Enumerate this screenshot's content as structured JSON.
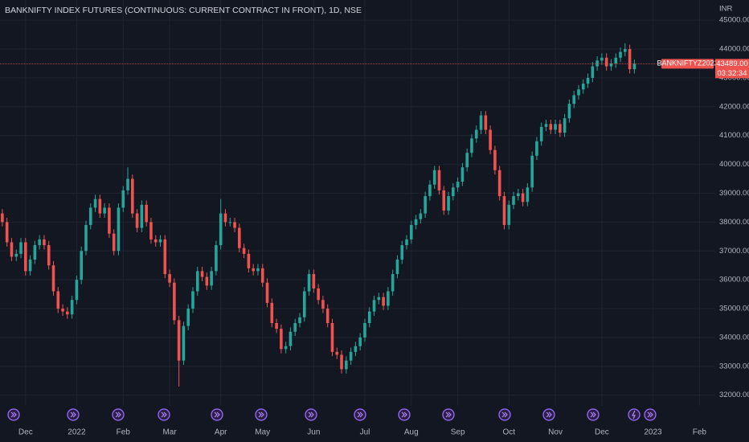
{
  "chart_data": {
    "type": "candlestick",
    "title": "BANKNIFTY INDEX FUTURES (CONTINUOUS: CURRENT CONTRACT IN FRONT), 1D, NSE",
    "currency": "INR",
    "up_color": "#26a69a",
    "down_color": "#ef5350",
    "open": [
      38300,
      38000,
      37300,
      36800,
      36900,
      37300,
      36300,
      36700,
      37200,
      37400,
      37200,
      36500,
      35600,
      35000,
      34900,
      34800,
      35300,
      36000,
      37000,
      37900,
      38500,
      38800,
      38300,
      38500,
      37600,
      37000,
      38500,
      39100,
      39500,
      38300,
      37800,
      38600,
      38000,
      37400,
      37300,
      37400,
      36200,
      35900,
      34600,
      33200,
      34400,
      35000,
      35600,
      36300,
      36100,
      35800,
      36300,
      37200,
      38300,
      38000,
      38000,
      37800,
      37100,
      36900,
      36400,
      36300,
      36400,
      35900,
      35200,
      34500,
      34300,
      33600,
      33700,
      34200,
      34500,
      34700,
      35600,
      36200,
      35700,
      35300,
      35000,
      34500,
      33500,
      33400,
      32900,
      33200,
      33500,
      33700,
      34000,
      34500,
      34900,
      35300,
      35400,
      35100,
      35600,
      36200,
      36700,
      37200,
      37400,
      37900,
      38100,
      38300,
      38900,
      39300,
      39800,
      39100,
      38400,
      38900,
      39200,
      39400,
      39900,
      40400,
      40900,
      41200,
      41700,
      41200,
      40500,
      39800,
      38900,
      37900,
      38600,
      38900,
      39000,
      38700,
      39200,
      40300,
      40800,
      41300,
      41400,
      41200,
      41400,
      41100,
      41600,
      42100,
      42400,
      42600,
      42800,
      43000,
      43400,
      43600,
      43700,
      43400,
      43500,
      43700,
      43900,
      44000,
      43300
    ],
    "high": [
      38450,
      38150,
      37450,
      37050,
      37450,
      37450,
      36850,
      37350,
      37550,
      37550,
      37350,
      36650,
      35750,
      35150,
      35050,
      35450,
      36150,
      37150,
      38050,
      38650,
      38950,
      38950,
      38650,
      38650,
      37750,
      38650,
      39250,
      39900,
      39650,
      38450,
      38750,
      38750,
      38150,
      37550,
      37550,
      37550,
      36350,
      36050,
      34750,
      34550,
      35150,
      35750,
      36450,
      36450,
      36250,
      36450,
      37350,
      38800,
      38450,
      38150,
      38150,
      37950,
      37250,
      37050,
      36550,
      36550,
      36550,
      36050,
      35350,
      34650,
      34450,
      33850,
      34350,
      34650,
      34850,
      35750,
      36350,
      36350,
      35850,
      35450,
      35150,
      34650,
      33650,
      33550,
      33350,
      33650,
      33850,
      34150,
      34650,
      35050,
      35450,
      35550,
      35550,
      35750,
      36350,
      36850,
      37350,
      37550,
      38050,
      38250,
      38450,
      39050,
      39450,
      39950,
      39950,
      39250,
      39050,
      39350,
      39550,
      40050,
      40550,
      41050,
      41350,
      41850,
      41850,
      41350,
      40650,
      39950,
      39050,
      38750,
      39050,
      39150,
      39150,
      39350,
      40450,
      40950,
      41450,
      41550,
      41550,
      41550,
      41550,
      41750,
      42250,
      42550,
      42750,
      42950,
      43150,
      43550,
      43750,
      43850,
      43850,
      43650,
      43850,
      44050,
      44200,
      44150,
      43639
    ],
    "low": [
      37850,
      37150,
      36650,
      36650,
      36750,
      36150,
      36150,
      36550,
      37050,
      37050,
      36350,
      35450,
      34850,
      34750,
      34650,
      34650,
      35150,
      35850,
      36850,
      37750,
      38350,
      38150,
      38150,
      37450,
      36850,
      36850,
      38350,
      38950,
      38150,
      37650,
      37650,
      37850,
      37250,
      37150,
      37150,
      36050,
      35750,
      34450,
      32300,
      33050,
      34250,
      34850,
      35450,
      35950,
      35650,
      35650,
      36150,
      37050,
      37850,
      37850,
      37650,
      36950,
      36750,
      36250,
      36150,
      36150,
      35750,
      35050,
      34350,
      34150,
      33450,
      33450,
      33550,
      34050,
      34350,
      34550,
      35450,
      35550,
      35150,
      34850,
      34350,
      33350,
      33250,
      32750,
      32750,
      33050,
      33350,
      33550,
      33850,
      34350,
      34750,
      35150,
      34950,
      34950,
      35450,
      36050,
      36550,
      37050,
      37250,
      37750,
      37950,
      38150,
      38750,
      39150,
      38950,
      38250,
      38250,
      38750,
      39050,
      39250,
      39750,
      40250,
      40750,
      41050,
      41050,
      40350,
      39650,
      38750,
      37750,
      37750,
      38450,
      38750,
      38550,
      38550,
      39050,
      40150,
      40650,
      41150,
      41050,
      41050,
      40950,
      40950,
      41450,
      41950,
      42250,
      42450,
      42650,
      42850,
      43250,
      43450,
      43250,
      43250,
      43350,
      43550,
      43750,
      43150,
      43150
    ],
    "close": [
      38000,
      37300,
      36800,
      36900,
      37300,
      36300,
      36700,
      37200,
      37400,
      37200,
      36500,
      35600,
      35000,
      34900,
      34800,
      35300,
      36000,
      37000,
      37900,
      38500,
      38800,
      38300,
      38500,
      37600,
      37000,
      38500,
      39100,
      39500,
      38300,
      37800,
      38600,
      38000,
      37400,
      37300,
      37400,
      36200,
      35900,
      34600,
      33200,
      34400,
      35000,
      35600,
      36300,
      36100,
      35800,
      36300,
      37200,
      38300,
      38000,
      38000,
      37800,
      37100,
      36900,
      36400,
      36300,
      36400,
      35900,
      35200,
      34500,
      34300,
      33600,
      33700,
      34200,
      34500,
      34700,
      35600,
      36200,
      35700,
      35300,
      35000,
      34500,
      33500,
      33400,
      32900,
      33200,
      33500,
      33700,
      34000,
      34500,
      34900,
      35300,
      35400,
      35100,
      35600,
      36200,
      36700,
      37200,
      37400,
      37900,
      38100,
      38300,
      38900,
      39300,
      39800,
      39100,
      38400,
      38900,
      39200,
      39400,
      39900,
      40400,
      40900,
      41200,
      41700,
      41200,
      40500,
      39800,
      38900,
      37900,
      38600,
      38900,
      39000,
      38700,
      39200,
      40300,
      40800,
      41300,
      41400,
      41200,
      41400,
      41100,
      41600,
      42100,
      42400,
      42600,
      42800,
      43000,
      43400,
      43600,
      43700,
      43400,
      43500,
      43700,
      43900,
      44000,
      43300,
      43489
    ],
    "xlim": [
      -0.5,
      153.4
    ],
    "xticks": [
      {
        "value": 5,
        "label": "Dec"
      },
      {
        "value": 16,
        "label": "2022"
      },
      {
        "value": 26,
        "label": "Feb"
      },
      {
        "value": 36,
        "label": "Mar"
      },
      {
        "value": 47,
        "label": "Apr"
      },
      {
        "value": 56,
        "label": "May"
      },
      {
        "value": 67,
        "label": "Jun"
      },
      {
        "value": 78,
        "label": "Jul"
      },
      {
        "value": 88,
        "label": "Aug"
      },
      {
        "value": 98,
        "label": "Sep"
      },
      {
        "value": 109,
        "label": "Oct"
      },
      {
        "value": 119,
        "label": "Nov"
      },
      {
        "value": 129,
        "label": "Dec"
      },
      {
        "value": 140,
        "label": "2023"
      },
      {
        "value": 150,
        "label": "Feb"
      }
    ],
    "ylim": [
      31630,
      45700
    ],
    "yticks": [
      {
        "value": 32000,
        "label": "32000.00"
      },
      {
        "value": 33000,
        "label": "33000.00"
      },
      {
        "value": 34000,
        "label": "34000.00"
      },
      {
        "value": 35000,
        "label": "35000.00"
      },
      {
        "value": 36000,
        "label": "36000.00"
      },
      {
        "value": 37000,
        "label": "37000.00"
      },
      {
        "value": 38000,
        "label": "38000.00"
      },
      {
        "value": 39000,
        "label": "39000.00"
      },
      {
        "value": 40000,
        "label": "40000.00"
      },
      {
        "value": 41000,
        "label": "41000.00"
      },
      {
        "value": 42000,
        "label": "42000.00"
      },
      {
        "value": 43000,
        "label": "43000.00"
      },
      {
        "value": 44000,
        "label": "44000.00"
      },
      {
        "value": 45000,
        "label": "45000.00"
      }
    ],
    "grid": true,
    "last_price": {
      "symbol": "BANKNIFTYZ2022",
      "value": 43489,
      "label": "43489.00",
      "countdown": "03:32:34"
    }
  }
}
